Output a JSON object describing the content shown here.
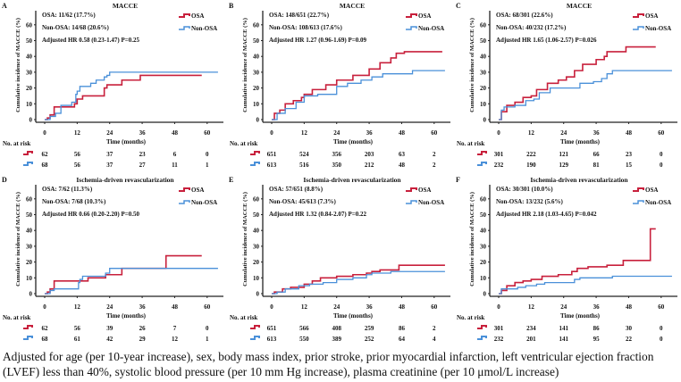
{
  "colors": {
    "osa": "#c8203c",
    "non_osa": "#4a90d9"
  },
  "caption": "Adjusted for age (per 10-year increase), sex, body mass index, prior stroke, prior myocardial infarction, left ventricular ejection fraction (LVEF) less than 40%, systolic blood pressure (per 10 mm Hg increase), plasma creatinine (per 10 μmol/L increase)",
  "chart_data": [
    {
      "type": "line",
      "panel": "A",
      "title": "MACCE",
      "xlabel": "Time (months)",
      "ylabel": "Cumulative incidence of MACCE (%)",
      "xticks": [
        0,
        12,
        24,
        36,
        48,
        60
      ],
      "yticks": [
        0,
        10,
        20,
        30,
        40,
        50,
        60
      ],
      "xlim": [
        0,
        64
      ],
      "ylim": [
        0,
        65
      ],
      "stats": [
        "OSA: 11/62 (17.7%)",
        "Non-OSA: 14/68 (20.6%)",
        "Adjusted HR 0.58 (0.23-1.47) P=0.25"
      ],
      "legend": [
        "OSA",
        "Non-OSA"
      ],
      "legend_position": "top-right",
      "risk_label": "No. at risk",
      "risk": {
        "OSA": [
          62,
          56,
          37,
          23,
          6,
          0
        ],
        "Non-OSA": [
          68,
          56,
          37,
          27,
          11,
          1
        ]
      },
      "series": [
        {
          "name": "OSA",
          "points": [
            [
              0,
              0
            ],
            [
              1,
              1
            ],
            [
              2,
              3
            ],
            [
              3.5,
              8
            ],
            [
              10,
              8
            ],
            [
              11,
              10
            ],
            [
              12,
              13
            ],
            [
              14,
              15
            ],
            [
              21,
              15
            ],
            [
              22,
              20
            ],
            [
              23,
              22
            ],
            [
              28,
              22
            ],
            [
              28.5,
              25
            ],
            [
              35,
              25
            ],
            [
              35.3,
              28
            ],
            [
              58,
              28
            ]
          ]
        },
        {
          "name": "Non-OSA",
          "points": [
            [
              0,
              0
            ],
            [
              2,
              2
            ],
            [
              4,
              4
            ],
            [
              6,
              9
            ],
            [
              9,
              9
            ],
            [
              10,
              11
            ],
            [
              11.5,
              16
            ],
            [
              12,
              18
            ],
            [
              13,
              21
            ],
            [
              16,
              21
            ],
            [
              17,
              23
            ],
            [
              19,
              25
            ],
            [
              22,
              27
            ],
            [
              23,
              28
            ],
            [
              24,
              30
            ],
            [
              64,
              30
            ]
          ]
        }
      ]
    },
    {
      "type": "line",
      "panel": "B",
      "title": "MACCE",
      "xlabel": "Time (months)",
      "ylabel": "Cumulative incidence of MACCE (%)",
      "xticks": [
        0,
        12,
        24,
        36,
        48,
        60
      ],
      "yticks": [
        0,
        10,
        20,
        30,
        40,
        50,
        60
      ],
      "xlim": [
        0,
        64
      ],
      "ylim": [
        0,
        65
      ],
      "stats": [
        "OSA: 148/651 (22.7%)",
        "Non-OSA: 108/613 (17.6%)",
        "Adjusted HR 1.27 (0.96-1.69) P=0.09"
      ],
      "legend": [
        "OSA",
        "Non-OSA"
      ],
      "legend_position": "top-right",
      "risk_label": "No. at risk",
      "risk": {
        "OSA": [
          651,
          524,
          356,
          203,
          63,
          2
        ],
        "Non-OSA": [
          613,
          516,
          350,
          212,
          48,
          2
        ]
      },
      "series": [
        {
          "name": "OSA",
          "points": [
            [
              0,
              0
            ],
            [
              1,
              4
            ],
            [
              3,
              6
            ],
            [
              5,
              10
            ],
            [
              8,
              12
            ],
            [
              11,
              14
            ],
            [
              12,
              16
            ],
            [
              15,
              19
            ],
            [
              20,
              22
            ],
            [
              24,
              25
            ],
            [
              30,
              28
            ],
            [
              36,
              32
            ],
            [
              40,
              36
            ],
            [
              44,
              39
            ],
            [
              46,
              42
            ],
            [
              49,
              43
            ],
            [
              63,
              43
            ]
          ]
        },
        {
          "name": "Non-OSA",
          "points": [
            [
              0,
              0
            ],
            [
              2,
              4
            ],
            [
              5,
              7
            ],
            [
              9,
              11
            ],
            [
              12,
              15
            ],
            [
              17,
              16
            ],
            [
              24,
              21
            ],
            [
              28,
              23
            ],
            [
              33,
              25
            ],
            [
              37,
              27
            ],
            [
              41,
              29
            ],
            [
              52,
              29
            ],
            [
              52,
              31
            ],
            [
              64,
              31
            ]
          ]
        }
      ]
    },
    {
      "type": "line",
      "panel": "C",
      "title": "MACCE",
      "xlabel": "Time (months)",
      "ylabel": "Cumulative incidence of MACCE (%)",
      "xticks": [
        0,
        12,
        24,
        36,
        48,
        60
      ],
      "yticks": [
        0,
        10,
        20,
        30,
        40,
        50,
        60
      ],
      "xlim": [
        0,
        64
      ],
      "ylim": [
        0,
        65
      ],
      "stats": [
        "OSA: 68/301 (22.6%)",
        "Non-OSA: 40/232 (17.2%)",
        "Adjusted HR 1.65 (1.06-2.57) P=0.026"
      ],
      "legend": [
        "OSA",
        "Non-OSA"
      ],
      "legend_position": "top-right",
      "risk_label": "No. at risk",
      "risk": {
        "OSA": [
          301,
          222,
          121,
          66,
          23,
          0
        ],
        "Non-OSA": [
          232,
          190,
          129,
          81,
          15,
          0
        ]
      },
      "series": [
        {
          "name": "OSA",
          "points": [
            [
              0,
              0
            ],
            [
              1,
              5
            ],
            [
              3,
              9
            ],
            [
              6,
              11
            ],
            [
              9,
              14
            ],
            [
              12,
              15
            ],
            [
              14,
              19
            ],
            [
              18,
              23
            ],
            [
              22,
              25
            ],
            [
              25,
              27
            ],
            [
              28,
              31
            ],
            [
              31,
              35
            ],
            [
              36,
              38
            ],
            [
              39,
              40
            ],
            [
              40,
              43
            ],
            [
              47,
              43
            ],
            [
              47,
              46
            ],
            [
              58,
              46
            ]
          ]
        },
        {
          "name": "Non-OSA",
          "points": [
            [
              0,
              0
            ],
            [
              1,
              6
            ],
            [
              2,
              8
            ],
            [
              6,
              9
            ],
            [
              10,
              12
            ],
            [
              13,
              13
            ],
            [
              15,
              17
            ],
            [
              19,
              20
            ],
            [
              28,
              20
            ],
            [
              30,
              23
            ],
            [
              35,
              24
            ],
            [
              38,
              26
            ],
            [
              40,
              29
            ],
            [
              42,
              31
            ],
            [
              64,
              31
            ]
          ]
        }
      ]
    },
    {
      "type": "line",
      "panel": "D",
      "title": "Ischemia-driven revascularization",
      "xlabel": "Time (months)",
      "ylabel": "Cumulative incidence of MACCE (%)",
      "xticks": [
        0,
        12,
        24,
        36,
        48,
        60
      ],
      "yticks": [
        0,
        10,
        20,
        30,
        40,
        50,
        60
      ],
      "xlim": [
        0,
        64
      ],
      "ylim": [
        0,
        65
      ],
      "stats": [
        "OSA: 7/62 (11.3%)",
        "Non-OSA: 7/68 (10.3%)",
        "Adjusted HR 0.66 (0.20-2.20) P=0.50"
      ],
      "legend": [
        "OSA",
        "Non-OSA"
      ],
      "legend_position": "top-right",
      "risk_label": "No. at risk",
      "risk": {
        "OSA": [
          62,
          56,
          39,
          26,
          7,
          0
        ],
        "Non-OSA": [
          68,
          61,
          42,
          29,
          12,
          1
        ]
      },
      "series": [
        {
          "name": "OSA",
          "points": [
            [
              0,
              0
            ],
            [
              1,
              1
            ],
            [
              2,
              3
            ],
            [
              3.5,
              8
            ],
            [
              13,
              8
            ],
            [
              16,
              10
            ],
            [
              22,
              10
            ],
            [
              22.5,
              12
            ],
            [
              28,
              12
            ],
            [
              28.5,
              16
            ],
            [
              44.5,
              16
            ],
            [
              44.8,
              24
            ],
            [
              58,
              24
            ]
          ]
        },
        {
          "name": "Non-OSA",
          "points": [
            [
              0,
              0
            ],
            [
              2,
              2
            ],
            [
              3.5,
              3
            ],
            [
              12,
              3
            ],
            [
              12.5,
              7
            ],
            [
              13,
              9
            ],
            [
              14,
              11
            ],
            [
              22,
              11
            ],
            [
              22.5,
              13
            ],
            [
              24,
              16
            ],
            [
              64,
              16
            ]
          ]
        }
      ]
    },
    {
      "type": "line",
      "panel": "E",
      "title": "Ischemia-driven revascularization",
      "xlabel": "Time (months)",
      "ylabel": "Cumulative incidence of MACCE (%)",
      "xticks": [
        0,
        12,
        24,
        36,
        48,
        60
      ],
      "yticks": [
        0,
        10,
        20,
        30,
        40,
        50,
        60
      ],
      "xlim": [
        0,
        64
      ],
      "ylim": [
        0,
        65
      ],
      "stats": [
        "OSA: 57/651 (8.8%)",
        "Non-OSA: 45/613 (7.3%)",
        "Adjusted HR 1.32 (0.84-2.07) P=0.22"
      ],
      "legend": [
        "OSA",
        "Non-OSA"
      ],
      "legend_position": "top-right",
      "risk_label": "No. at risk",
      "risk": {
        "OSA": [
          651,
          566,
          408,
          259,
          86,
          2
        ],
        "Non-OSA": [
          613,
          550,
          389,
          252,
          64,
          4
        ]
      },
      "series": [
        {
          "name": "OSA",
          "points": [
            [
              0,
              0
            ],
            [
              1,
              1
            ],
            [
              4,
              3
            ],
            [
              7,
              4
            ],
            [
              12,
              6
            ],
            [
              15,
              8
            ],
            [
              18,
              10
            ],
            [
              24,
              11
            ],
            [
              30,
              12
            ],
            [
              35,
              13
            ],
            [
              37,
              14
            ],
            [
              40,
              15
            ],
            [
              47,
              15
            ],
            [
              47,
              18
            ],
            [
              64,
              18
            ]
          ]
        },
        {
          "name": "Non-OSA",
          "points": [
            [
              0,
              0
            ],
            [
              2,
              1
            ],
            [
              5,
              3
            ],
            [
              10,
              5
            ],
            [
              14,
              6
            ],
            [
              19,
              7
            ],
            [
              24,
              9
            ],
            [
              30,
              10
            ],
            [
              35,
              12
            ],
            [
              37,
              13
            ],
            [
              44,
              13
            ],
            [
              44,
              14
            ],
            [
              64,
              14
            ]
          ]
        }
      ]
    },
    {
      "type": "line",
      "panel": "F",
      "title": "Ischemia-driven revascularization",
      "xlabel": "Time (months)",
      "ylabel": "Cumulative incidence of MACCE (%)",
      "xticks": [
        0,
        12,
        24,
        36,
        48,
        60
      ],
      "yticks": [
        0,
        10,
        20,
        30,
        40,
        50,
        60
      ],
      "xlim": [
        0,
        64
      ],
      "ylim": [
        0,
        65
      ],
      "stats": [
        "OSA: 30/301 (10.0%)",
        "Non-OSA: 13/232 (5.6%)",
        "Adjusted HR 2.18 (1.03-4.65) P=0.042"
      ],
      "legend": [
        "OSA",
        "Non-OSA"
      ],
      "legend_position": "top-right",
      "risk_label": "No. at risk",
      "risk": {
        "OSA": [
          301,
          234,
          141,
          86,
          30,
          0
        ],
        "Non-OSA": [
          232,
          201,
          141,
          95,
          22,
          0
        ]
      },
      "series": [
        {
          "name": "OSA",
          "points": [
            [
              0,
              0
            ],
            [
              1,
              2
            ],
            [
              3,
              5
            ],
            [
              6,
              7
            ],
            [
              9,
              8
            ],
            [
              12,
              9
            ],
            [
              16,
              11
            ],
            [
              22,
              12
            ],
            [
              27,
              14
            ],
            [
              29,
              16
            ],
            [
              33,
              17
            ],
            [
              40,
              18
            ],
            [
              46,
              21
            ],
            [
              56,
              21
            ],
            [
              56,
              41
            ],
            [
              58,
              41
            ]
          ]
        },
        {
          "name": "Non-OSA",
          "points": [
            [
              0,
              0
            ],
            [
              1,
              3
            ],
            [
              5,
              3
            ],
            [
              7,
              4
            ],
            [
              10,
              5
            ],
            [
              14,
              6
            ],
            [
              17,
              7
            ],
            [
              24,
              7
            ],
            [
              28,
              9
            ],
            [
              30,
              10
            ],
            [
              42,
              10
            ],
            [
              42,
              11
            ],
            [
              64,
              11
            ]
          ]
        }
      ]
    }
  ]
}
